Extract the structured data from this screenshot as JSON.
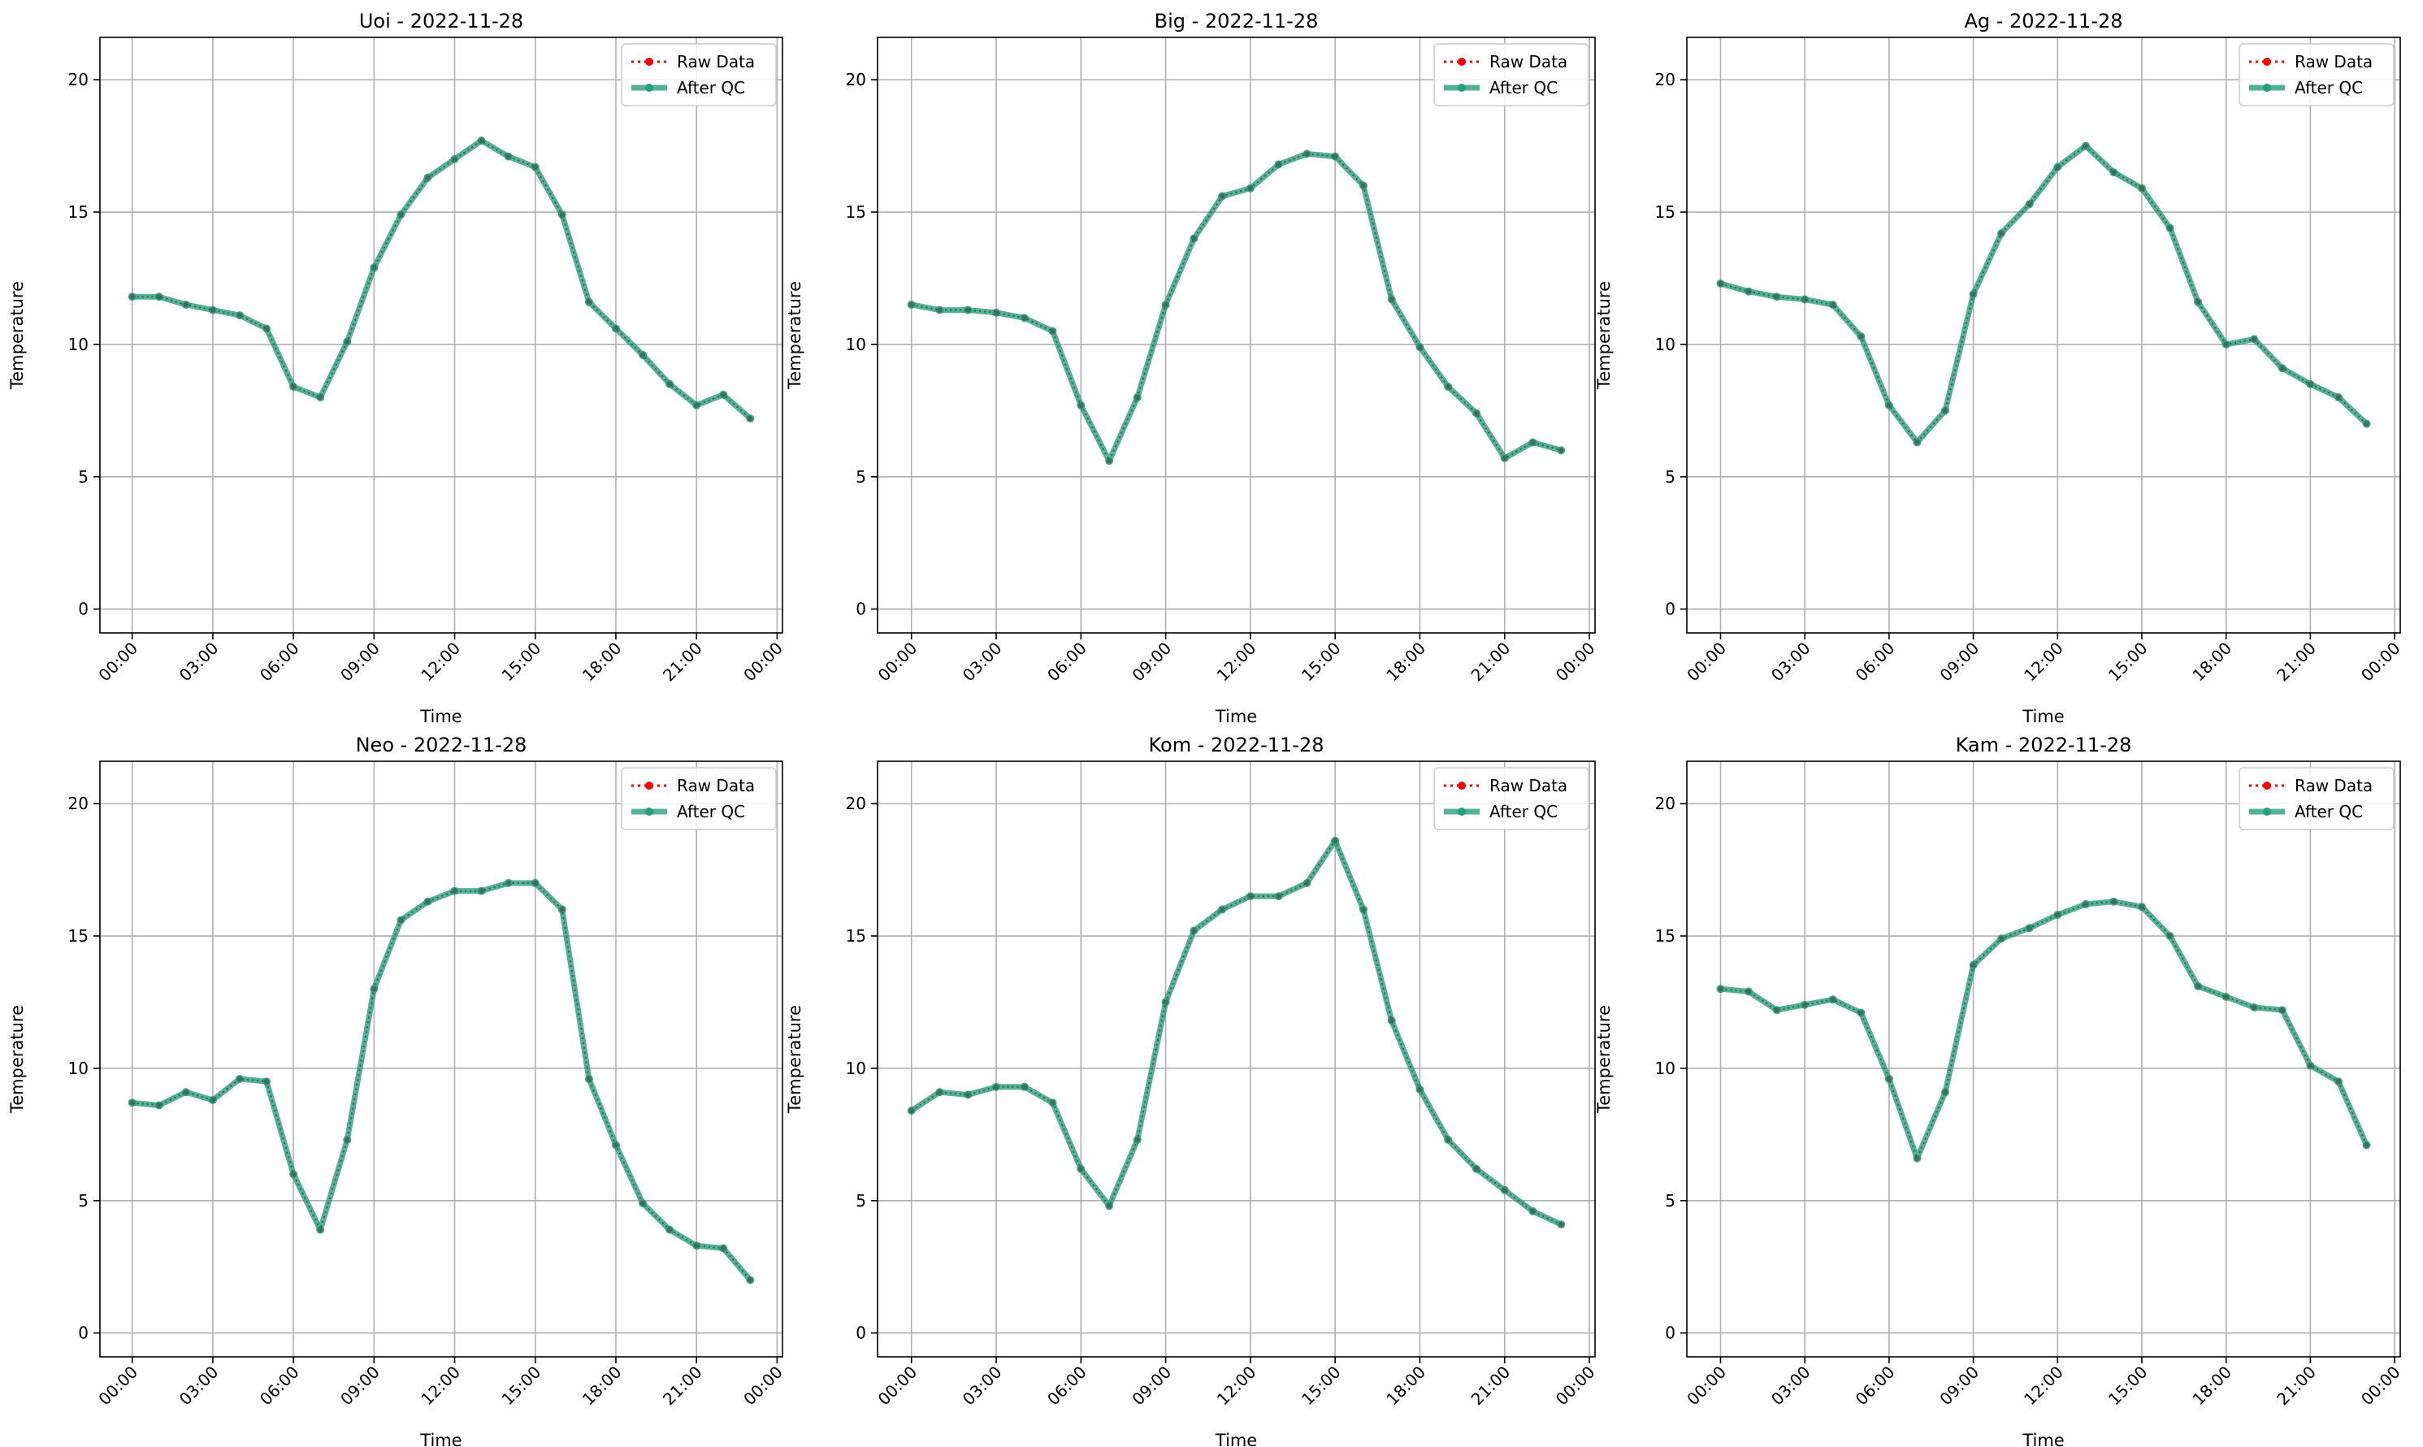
{
  "chart_data": [
    {
      "type": "line",
      "title": "Uoi - 2022-11-28",
      "xlabel": "Time",
      "ylabel": "Temperature",
      "x": [
        0,
        1,
        2,
        3,
        4,
        5,
        6,
        7,
        8,
        9,
        10,
        11,
        12,
        13,
        14,
        15,
        16,
        17,
        18,
        19,
        20,
        21,
        22,
        23
      ],
      "xlim": [
        -1.2,
        24.2
      ],
      "ylim": [
        -0.9,
        21.6
      ],
      "xticks": [
        0,
        3,
        6,
        9,
        12,
        15,
        18,
        21,
        24
      ],
      "xtick_labels": [
        "00:00",
        "03:00",
        "06:00",
        "09:00",
        "12:00",
        "15:00",
        "18:00",
        "21:00",
        "00:00"
      ],
      "yticks": [
        0,
        5,
        10,
        15,
        20
      ],
      "ytick_labels": [
        "0",
        "5",
        "10",
        "15",
        "20"
      ],
      "grid": true,
      "legend": "top-right",
      "series": [
        {
          "name": "Raw Data",
          "color": "#ff0000",
          "style": "dotted",
          "values": [
            11.8,
            11.8,
            11.5,
            11.3,
            11.1,
            10.6,
            8.4,
            8.0,
            10.1,
            12.9,
            14.9,
            16.3,
            17.0,
            17.7,
            17.1,
            16.7,
            14.9,
            11.6,
            10.6,
            9.6,
            8.5,
            7.7,
            8.1,
            7.2
          ]
        },
        {
          "name": "After QC",
          "color": "#2a9d7a",
          "style": "solid",
          "values": [
            11.8,
            11.8,
            11.5,
            11.3,
            11.1,
            10.6,
            8.4,
            8.0,
            10.1,
            12.9,
            14.9,
            16.3,
            17.0,
            17.7,
            17.1,
            16.7,
            14.9,
            11.6,
            10.6,
            9.6,
            8.5,
            7.7,
            8.1,
            7.2
          ]
        }
      ]
    },
    {
      "type": "line",
      "title": "Big - 2022-11-28",
      "xlabel": "Time",
      "ylabel": "Temperature",
      "x": [
        0,
        1,
        2,
        3,
        4,
        5,
        6,
        7,
        8,
        9,
        10,
        11,
        12,
        13,
        14,
        15,
        16,
        17,
        18,
        19,
        20,
        21,
        22,
        23
      ],
      "xlim": [
        -1.2,
        24.2
      ],
      "ylim": [
        -0.9,
        21.6
      ],
      "xticks": [
        0,
        3,
        6,
        9,
        12,
        15,
        18,
        21,
        24
      ],
      "xtick_labels": [
        "00:00",
        "03:00",
        "06:00",
        "09:00",
        "12:00",
        "15:00",
        "18:00",
        "21:00",
        "00:00"
      ],
      "yticks": [
        0,
        5,
        10,
        15,
        20
      ],
      "ytick_labels": [
        "0",
        "5",
        "10",
        "15",
        "20"
      ],
      "grid": true,
      "legend": "top-right",
      "series": [
        {
          "name": "Raw Data",
          "color": "#ff0000",
          "style": "dotted",
          "values": [
            11.5,
            11.3,
            11.3,
            11.2,
            11.0,
            10.5,
            7.7,
            5.6,
            8.0,
            11.5,
            14.0,
            15.6,
            15.9,
            16.8,
            17.2,
            17.1,
            16.0,
            11.7,
            9.9,
            8.4,
            7.4,
            5.7,
            6.3,
            6.0
          ]
        },
        {
          "name": "After QC",
          "color": "#2a9d7a",
          "style": "solid",
          "values": [
            11.5,
            11.3,
            11.3,
            11.2,
            11.0,
            10.5,
            7.7,
            5.6,
            8.0,
            11.5,
            14.0,
            15.6,
            15.9,
            16.8,
            17.2,
            17.1,
            16.0,
            11.7,
            9.9,
            8.4,
            7.4,
            5.7,
            6.3,
            6.0
          ]
        }
      ]
    },
    {
      "type": "line",
      "title": "Ag - 2022-11-28",
      "xlabel": "Time",
      "ylabel": "Temperature",
      "x": [
        0,
        1,
        2,
        3,
        4,
        5,
        6,
        7,
        8,
        9,
        10,
        11,
        12,
        13,
        14,
        15,
        16,
        17,
        18,
        19,
        20,
        21,
        22,
        23
      ],
      "xlim": [
        -1.2,
        24.2
      ],
      "ylim": [
        -0.9,
        21.6
      ],
      "xticks": [
        0,
        3,
        6,
        9,
        12,
        15,
        18,
        21,
        24
      ],
      "xtick_labels": [
        "00:00",
        "03:00",
        "06:00",
        "09:00",
        "12:00",
        "15:00",
        "18:00",
        "21:00",
        "00:00"
      ],
      "yticks": [
        0,
        5,
        10,
        15,
        20
      ],
      "ytick_labels": [
        "0",
        "5",
        "10",
        "15",
        "20"
      ],
      "grid": true,
      "legend": "top-right",
      "series": [
        {
          "name": "Raw Data",
          "color": "#ff0000",
          "style": "dotted",
          "values": [
            12.3,
            12.0,
            11.8,
            11.7,
            11.5,
            10.3,
            7.7,
            6.3,
            7.5,
            11.9,
            14.2,
            15.3,
            16.7,
            17.5,
            16.5,
            15.9,
            14.4,
            11.6,
            10.0,
            10.2,
            9.1,
            8.5,
            8.0,
            7.0
          ]
        },
        {
          "name": "After QC",
          "color": "#2a9d7a",
          "style": "solid",
          "values": [
            12.3,
            12.0,
            11.8,
            11.7,
            11.5,
            10.3,
            7.7,
            6.3,
            7.5,
            11.9,
            14.2,
            15.3,
            16.7,
            17.5,
            16.5,
            15.9,
            14.4,
            11.6,
            10.0,
            10.2,
            9.1,
            8.5,
            8.0,
            7.0
          ]
        }
      ]
    },
    {
      "type": "line",
      "title": "Neo - 2022-11-28",
      "xlabel": "Time",
      "ylabel": "Temperature",
      "x": [
        0,
        1,
        2,
        3,
        4,
        5,
        6,
        7,
        8,
        9,
        10,
        11,
        12,
        13,
        14,
        15,
        16,
        17,
        18,
        19,
        20,
        21,
        22,
        23
      ],
      "xlim": [
        -1.2,
        24.2
      ],
      "ylim": [
        -0.9,
        21.6
      ],
      "xticks": [
        0,
        3,
        6,
        9,
        12,
        15,
        18,
        21,
        24
      ],
      "xtick_labels": [
        "00:00",
        "03:00",
        "06:00",
        "09:00",
        "12:00",
        "15:00",
        "18:00",
        "21:00",
        "00:00"
      ],
      "yticks": [
        0,
        5,
        10,
        15,
        20
      ],
      "ytick_labels": [
        "0",
        "5",
        "10",
        "15",
        "20"
      ],
      "grid": true,
      "legend": "top-right",
      "series": [
        {
          "name": "Raw Data",
          "color": "#ff0000",
          "style": "dotted",
          "values": [
            8.7,
            8.6,
            9.1,
            8.8,
            9.6,
            9.5,
            6.0,
            3.9,
            7.3,
            13.0,
            15.6,
            16.3,
            16.7,
            16.7,
            17.0,
            17.0,
            16.0,
            9.6,
            7.1,
            4.9,
            3.9,
            3.3,
            3.2,
            2.0
          ]
        },
        {
          "name": "After QC",
          "color": "#2a9d7a",
          "style": "solid",
          "values": [
            8.7,
            8.6,
            9.1,
            8.8,
            9.6,
            9.5,
            6.0,
            3.9,
            7.3,
            13.0,
            15.6,
            16.3,
            16.7,
            16.7,
            17.0,
            17.0,
            16.0,
            9.6,
            7.1,
            4.9,
            3.9,
            3.3,
            3.2,
            2.0
          ]
        }
      ]
    },
    {
      "type": "line",
      "title": "Kom - 2022-11-28",
      "xlabel": "Time",
      "ylabel": "Temperature",
      "x": [
        0,
        1,
        2,
        3,
        4,
        5,
        6,
        7,
        8,
        9,
        10,
        11,
        12,
        13,
        14,
        15,
        16,
        17,
        18,
        19,
        20,
        21,
        22,
        23
      ],
      "xlim": [
        -1.2,
        24.2
      ],
      "ylim": [
        -0.9,
        21.6
      ],
      "xticks": [
        0,
        3,
        6,
        9,
        12,
        15,
        18,
        21,
        24
      ],
      "xtick_labels": [
        "00:00",
        "03:00",
        "06:00",
        "09:00",
        "12:00",
        "15:00",
        "18:00",
        "21:00",
        "00:00"
      ],
      "yticks": [
        0,
        5,
        10,
        15,
        20
      ],
      "ytick_labels": [
        "0",
        "5",
        "10",
        "15",
        "20"
      ],
      "grid": true,
      "legend": "top-right",
      "series": [
        {
          "name": "Raw Data",
          "color": "#ff0000",
          "style": "dotted",
          "values": [
            8.4,
            9.1,
            9.0,
            9.3,
            9.3,
            8.7,
            6.2,
            4.8,
            7.3,
            12.5,
            15.2,
            16.0,
            16.5,
            16.5,
            17.0,
            18.6,
            16.0,
            11.8,
            9.2,
            7.3,
            6.2,
            5.4,
            4.6,
            4.1
          ]
        },
        {
          "name": "After QC",
          "color": "#2a9d7a",
          "style": "solid",
          "values": [
            8.4,
            9.1,
            9.0,
            9.3,
            9.3,
            8.7,
            6.2,
            4.8,
            7.3,
            12.5,
            15.2,
            16.0,
            16.5,
            16.5,
            17.0,
            18.6,
            16.0,
            11.8,
            9.2,
            7.3,
            6.2,
            5.4,
            4.6,
            4.1
          ]
        }
      ]
    },
    {
      "type": "line",
      "title": "Kam - 2022-11-28",
      "xlabel": "Time",
      "ylabel": "Temperature",
      "x": [
        0,
        1,
        2,
        3,
        4,
        5,
        6,
        7,
        8,
        9,
        10,
        11,
        12,
        13,
        14,
        15,
        16,
        17,
        18,
        19,
        20,
        21,
        22,
        23
      ],
      "xlim": [
        -1.2,
        24.2
      ],
      "ylim": [
        -0.9,
        21.6
      ],
      "xticks": [
        0,
        3,
        6,
        9,
        12,
        15,
        18,
        21,
        24
      ],
      "xtick_labels": [
        "00:00",
        "03:00",
        "06:00",
        "09:00",
        "12:00",
        "15:00",
        "18:00",
        "21:00",
        "00:00"
      ],
      "yticks": [
        0,
        5,
        10,
        15,
        20
      ],
      "ytick_labels": [
        "0",
        "5",
        "10",
        "15",
        "20"
      ],
      "grid": true,
      "legend": "top-right",
      "series": [
        {
          "name": "Raw Data",
          "color": "#ff0000",
          "style": "dotted",
          "values": [
            13.0,
            12.9,
            12.2,
            12.4,
            12.6,
            12.1,
            9.6,
            6.6,
            9.1,
            13.9,
            14.9,
            15.3,
            15.8,
            16.2,
            16.3,
            16.1,
            15.0,
            13.1,
            12.7,
            12.3,
            12.2,
            10.1,
            9.5,
            7.1
          ]
        },
        {
          "name": "After QC",
          "color": "#2a9d7a",
          "style": "solid",
          "values": [
            13.0,
            12.9,
            12.2,
            12.4,
            12.6,
            12.1,
            9.6,
            6.6,
            9.1,
            13.9,
            14.9,
            15.3,
            15.8,
            16.2,
            16.3,
            16.1,
            15.0,
            13.1,
            12.7,
            12.3,
            12.2,
            10.1,
            9.5,
            7.1
          ]
        }
      ]
    }
  ]
}
